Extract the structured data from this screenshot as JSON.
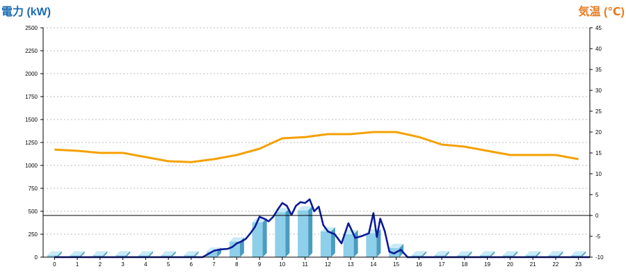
{
  "chart_data": {
    "type": "bar+line",
    "title_left": "電力 (kW)",
    "title_right": "気温 (℃)",
    "x": [
      "0",
      "1",
      "2",
      "3",
      "4",
      "5",
      "6",
      "7",
      "8",
      "9",
      "10",
      "11",
      "12",
      "13",
      "14",
      "15",
      "16",
      "17",
      "18",
      "19",
      "20",
      "21",
      "22",
      "23"
    ],
    "y_left": {
      "min": 0,
      "max": 2500,
      "ticks": [
        0,
        250,
        500,
        750,
        1000,
        1250,
        1500,
        1750,
        2000,
        2250,
        2500
      ]
    },
    "y_right": {
      "min": -10,
      "max": 45,
      "ticks": [
        -10,
        -5,
        0,
        5,
        10,
        15,
        20,
        25,
        30,
        35,
        40,
        45
      ]
    },
    "grid": true,
    "zero_line_temperature": 0,
    "colors": {
      "bar_front": "#8ecfea",
      "bar_side": "#4a9cc0",
      "bar_top": "#c8eaf7",
      "power_line": "#0b1a96",
      "temperature_line": "#f5a000",
      "left_title": "#1a6bb3",
      "right_title": "#e87a1e"
    },
    "series": [
      {
        "kind": "bar",
        "axis": "left",
        "values": [
          20,
          20,
          20,
          20,
          20,
          20,
          20,
          60,
          170,
          380,
          490,
          510,
          280,
          250,
          260,
          100,
          20,
          20,
          20,
          20,
          20,
          20,
          20,
          20
        ]
      },
      {
        "kind": "line",
        "axis": "left",
        "color": "#0b1a96",
        "points": [
          [
            0,
            0
          ],
          [
            6.5,
            0
          ],
          [
            7,
            70
          ],
          [
            7.3,
            85
          ],
          [
            7.6,
            90
          ],
          [
            7.8,
            110
          ],
          [
            8.0,
            150
          ],
          [
            8.2,
            170
          ],
          [
            8.4,
            200
          ],
          [
            8.6,
            260
          ],
          [
            8.8,
            330
          ],
          [
            9.0,
            440
          ],
          [
            9.2,
            420
          ],
          [
            9.4,
            390
          ],
          [
            9.6,
            440
          ],
          [
            9.8,
            520
          ],
          [
            10.0,
            590
          ],
          [
            10.2,
            560
          ],
          [
            10.4,
            460
          ],
          [
            10.6,
            560
          ],
          [
            10.8,
            600
          ],
          [
            11.0,
            590
          ],
          [
            11.2,
            630
          ],
          [
            11.4,
            500
          ],
          [
            11.6,
            550
          ],
          [
            11.8,
            350
          ],
          [
            12.0,
            280
          ],
          [
            12.3,
            250
          ],
          [
            12.6,
            150
          ],
          [
            12.9,
            370
          ],
          [
            13.2,
            210
          ],
          [
            13.5,
            230
          ],
          [
            13.8,
            260
          ],
          [
            14.0,
            480
          ],
          [
            14.15,
            220
          ],
          [
            14.3,
            420
          ],
          [
            14.5,
            280
          ],
          [
            14.7,
            60
          ],
          [
            14.9,
            40
          ],
          [
            15.2,
            80
          ],
          [
            15.5,
            0
          ],
          [
            23.5,
            0
          ]
        ]
      },
      {
        "kind": "line",
        "axis": "right",
        "color": "#f5a000",
        "values": [
          15.8,
          15.5,
          15.0,
          15.0,
          14.0,
          13.0,
          12.8,
          13.5,
          14.5,
          16.0,
          18.5,
          18.8,
          19.5,
          19.5,
          20.0,
          20.0,
          18.8,
          17.0,
          16.5,
          15.5,
          14.5,
          14.5,
          14.5,
          13.5
        ]
      }
    ]
  }
}
